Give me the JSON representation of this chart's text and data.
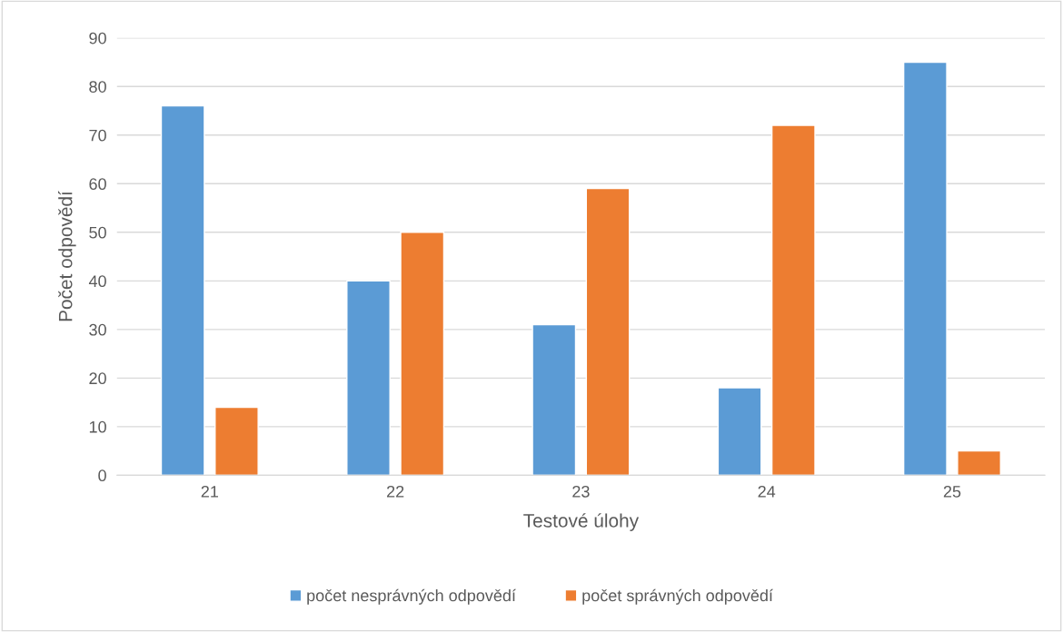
{
  "chart_data": {
    "type": "bar",
    "xlabel": "Testové úlohy",
    "ylabel": "Počet odpovědí",
    "categories": [
      "21",
      "22",
      "23",
      "24",
      "25"
    ],
    "series": [
      {
        "name": "počet nesprávných odpovědí",
        "color": "#5b9bd5",
        "values": [
          76,
          40,
          31,
          18,
          85
        ]
      },
      {
        "name": "počet správných odpovědí",
        "color": "#ed7d31",
        "values": [
          14,
          50,
          59,
          72,
          5
        ]
      }
    ],
    "ylim": [
      0,
      90
    ],
    "yticks": [
      0,
      10,
      20,
      30,
      40,
      50,
      60,
      70,
      80,
      90
    ],
    "grid": "y",
    "legend": "bottom"
  }
}
